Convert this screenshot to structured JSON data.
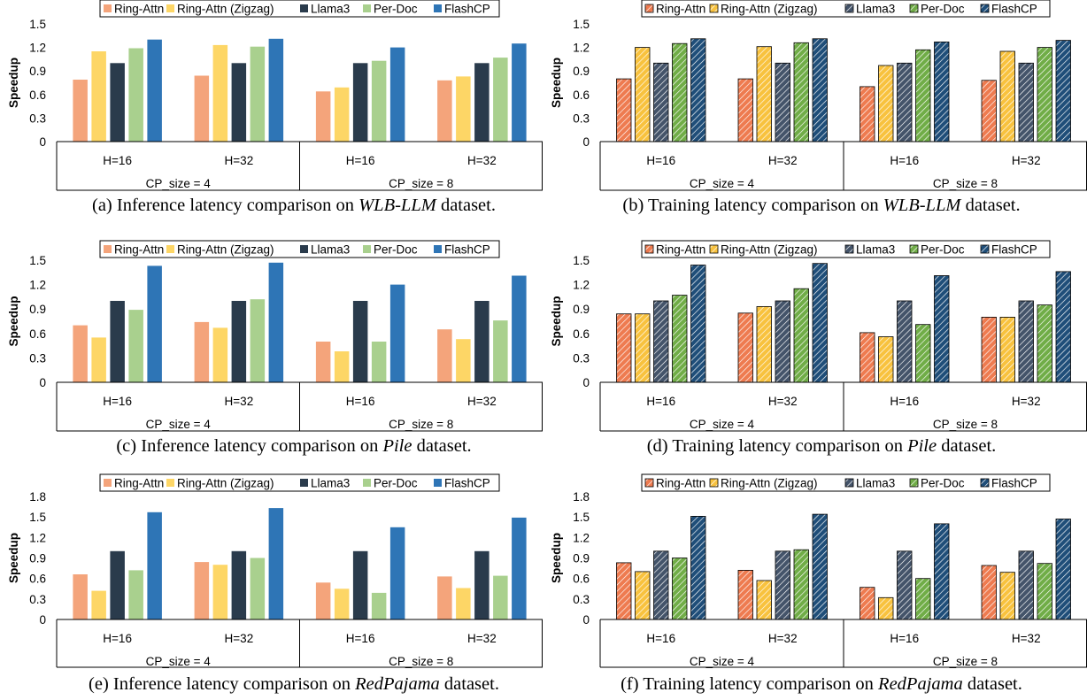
{
  "legend_order": [
    "Ring-Attn",
    "Ring-Attn (Zigzag)",
    "Llama3",
    "Per-Doc",
    "FlashCP"
  ],
  "colors": {
    "Ring-Attn": "#f4a47b",
    "Ring-Attn (Zigzag)": "#fdd666",
    "Llama3": "#2a3b4c",
    "Per-Doc": "#a9d08e",
    "FlashCP": "#2e75b6"
  },
  "hatched_colors": {
    "Ring-Attn": "#ee7b50",
    "Ring-Attn (Zigzag)": "#f8c23e",
    "Llama3": "#44546a",
    "Per-Doc": "#70ad47",
    "FlashCP": "#1f4e79"
  },
  "chart_data": [
    {
      "id": "a",
      "type": "bar",
      "style": "solid",
      "ylabel": "Speedup",
      "ylim": [
        0,
        1.5
      ],
      "yticks": [
        "0",
        "0.3",
        "0.6",
        "0.9",
        "1.2",
        "1.5"
      ],
      "categories": [
        "H=16",
        "H=32",
        "H=16",
        "H=32"
      ],
      "groups": [
        "CP_size = 4",
        "CP_size = 8"
      ],
      "series": [
        {
          "name": "Ring-Attn",
          "values": [
            0.79,
            0.84,
            0.64,
            0.78
          ]
        },
        {
          "name": "Ring-Attn (Zigzag)",
          "values": [
            1.15,
            1.23,
            0.69,
            0.83
          ]
        },
        {
          "name": "Llama3",
          "values": [
            1.0,
            1.0,
            1.0,
            1.0
          ]
        },
        {
          "name": "Per-Doc",
          "values": [
            1.19,
            1.21,
            1.03,
            1.07
          ]
        },
        {
          "name": "FlashCP",
          "values": [
            1.3,
            1.31,
            1.2,
            1.25
          ]
        }
      ],
      "caption": {
        "pre": "(a) Inference latency comparison on ",
        "em": "WLB-LLM",
        "post": " dataset."
      }
    },
    {
      "id": "b",
      "type": "bar",
      "style": "hatched",
      "ylabel": "Speedup",
      "ylim": [
        0,
        1.5
      ],
      "yticks": [
        "0",
        "0.3",
        "0.6",
        "0.9",
        "1.2",
        "1.5"
      ],
      "categories": [
        "H=16",
        "H=32",
        "H=16",
        "H=32"
      ],
      "groups": [
        "CP_size = 4",
        "CP_size = 8"
      ],
      "series": [
        {
          "name": "Ring-Attn",
          "values": [
            0.8,
            0.8,
            0.7,
            0.78
          ]
        },
        {
          "name": "Ring-Attn (Zigzag)",
          "values": [
            1.2,
            1.21,
            0.97,
            1.15
          ]
        },
        {
          "name": "Llama3",
          "values": [
            1.0,
            1.0,
            1.0,
            1.0
          ]
        },
        {
          "name": "Per-Doc",
          "values": [
            1.25,
            1.26,
            1.17,
            1.2
          ]
        },
        {
          "name": "FlashCP",
          "values": [
            1.31,
            1.31,
            1.27,
            1.29
          ]
        }
      ],
      "caption": {
        "pre": "(b) Training latency comparison on ",
        "em": "WLB-LLM",
        "post": " dataset."
      }
    },
    {
      "id": "c",
      "type": "bar",
      "style": "solid",
      "ylabel": "Speedup",
      "ylim": [
        0,
        1.5
      ],
      "yticks": [
        "0",
        "0.3",
        "0.6",
        "0.9",
        "1.2",
        "1.5"
      ],
      "categories": [
        "H=16",
        "H=32",
        "H=16",
        "H=32"
      ],
      "groups": [
        "CP_size = 4",
        "CP_size = 8"
      ],
      "series": [
        {
          "name": "Ring-Attn",
          "values": [
            0.7,
            0.74,
            0.5,
            0.65
          ]
        },
        {
          "name": "Ring-Attn (Zigzag)",
          "values": [
            0.55,
            0.67,
            0.38,
            0.53
          ]
        },
        {
          "name": "Llama3",
          "values": [
            1.0,
            1.0,
            1.0,
            1.0
          ]
        },
        {
          "name": "Per-Doc",
          "values": [
            0.89,
            1.02,
            0.5,
            0.76
          ]
        },
        {
          "name": "FlashCP",
          "values": [
            1.43,
            1.47,
            1.2,
            1.31
          ]
        }
      ],
      "caption": {
        "pre": "(c) Inference latency comparison on ",
        "em": "Pile",
        "post": " dataset."
      }
    },
    {
      "id": "d",
      "type": "bar",
      "style": "hatched",
      "ylabel": "Speedup",
      "ylim": [
        0,
        1.5
      ],
      "yticks": [
        "0",
        "0.3",
        "0.6",
        "0.9",
        "1.2",
        "1.5"
      ],
      "categories": [
        "H=16",
        "H=32",
        "H=16",
        "H=32"
      ],
      "groups": [
        "CP_size = 4",
        "CP_size = 8"
      ],
      "series": [
        {
          "name": "Ring-Attn",
          "values": [
            0.84,
            0.85,
            0.61,
            0.8
          ]
        },
        {
          "name": "Ring-Attn (Zigzag)",
          "values": [
            0.84,
            0.93,
            0.56,
            0.8
          ]
        },
        {
          "name": "Llama3",
          "values": [
            1.0,
            1.0,
            1.0,
            1.0
          ]
        },
        {
          "name": "Per-Doc",
          "values": [
            1.07,
            1.15,
            0.71,
            0.95
          ]
        },
        {
          "name": "FlashCP",
          "values": [
            1.44,
            1.46,
            1.31,
            1.36
          ]
        }
      ],
      "caption": {
        "pre": "(d) Training latency comparison on ",
        "em": "Pile",
        "post": " dataset."
      }
    },
    {
      "id": "e",
      "type": "bar",
      "style": "solid",
      "ylabel": "Speedup",
      "ylim": [
        0,
        1.8
      ],
      "yticks": [
        "0",
        "0.3",
        "0.6",
        "0.9",
        "1.2",
        "1.5",
        "1.8"
      ],
      "categories": [
        "H=16",
        "H=32",
        "H=16",
        "H=32"
      ],
      "groups": [
        "CP_size = 4",
        "CP_size = 8"
      ],
      "series": [
        {
          "name": "Ring-Attn",
          "values": [
            0.66,
            0.84,
            0.54,
            0.63
          ]
        },
        {
          "name": "Ring-Attn (Zigzag)",
          "values": [
            0.42,
            0.8,
            0.45,
            0.46
          ]
        },
        {
          "name": "Llama3",
          "values": [
            1.0,
            1.0,
            1.0,
            1.0
          ]
        },
        {
          "name": "Per-Doc",
          "values": [
            0.72,
            0.9,
            0.39,
            0.64
          ]
        },
        {
          "name": "FlashCP",
          "values": [
            1.57,
            1.63,
            1.35,
            1.49
          ]
        }
      ],
      "caption": {
        "pre": "(e) Inference latency comparison on ",
        "em": "RedPajama",
        "post": " dataset."
      }
    },
    {
      "id": "f",
      "type": "bar",
      "style": "hatched",
      "ylabel": "Speedup",
      "ylim": [
        0,
        1.8
      ],
      "yticks": [
        "0",
        "0.3",
        "0.6",
        "0.9",
        "1.2",
        "1.5",
        "1.8"
      ],
      "categories": [
        "H=16",
        "H=32",
        "H=16",
        "H=32"
      ],
      "groups": [
        "CP_size = 4",
        "CP_size = 8"
      ],
      "series": [
        {
          "name": "Ring-Attn",
          "values": [
            0.83,
            0.72,
            0.47,
            0.79
          ]
        },
        {
          "name": "Ring-Attn (Zigzag)",
          "values": [
            0.7,
            0.57,
            0.32,
            0.69
          ]
        },
        {
          "name": "Llama3",
          "values": [
            1.0,
            1.0,
            1.0,
            1.0
          ]
        },
        {
          "name": "Per-Doc",
          "values": [
            0.9,
            1.02,
            0.6,
            0.82
          ]
        },
        {
          "name": "FlashCP",
          "values": [
            1.51,
            1.54,
            1.4,
            1.47
          ]
        }
      ],
      "caption": {
        "pre": "(f) Training latency comparison on ",
        "em": "RedPajama",
        "post": " dataset."
      }
    }
  ]
}
